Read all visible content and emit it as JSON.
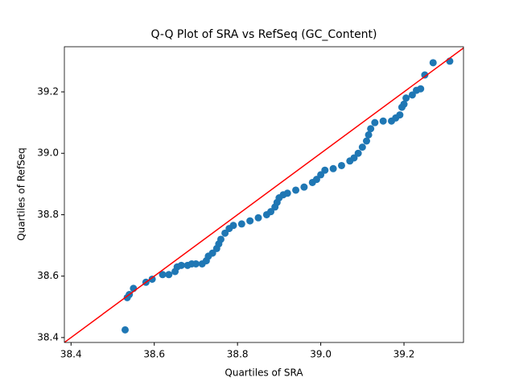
{
  "chart_data": {
    "type": "scatter",
    "title": "Q-Q Plot of SRA vs RefSeq (GC_Content)",
    "x_label": "Quartiles of SRA",
    "y_label": "Quartiles of RefSeq",
    "color": "#1f77b4",
    "line_color": "#ff0000",
    "x": [
      38.53,
      38.535,
      38.54,
      38.55,
      38.58,
      38.595,
      38.62,
      38.635,
      38.65,
      38.655,
      38.665,
      38.68,
      38.69,
      38.7,
      38.715,
      38.725,
      38.73,
      38.74,
      38.75,
      38.755,
      38.76,
      38.77,
      38.78,
      38.79,
      38.81,
      38.83,
      38.85,
      38.87,
      38.88,
      38.89,
      38.895,
      38.9,
      38.91,
      38.92,
      38.94,
      38.96,
      38.98,
      38.99,
      39.0,
      39.01,
      39.03,
      39.05,
      39.07,
      39.08,
      39.09,
      39.1,
      39.11,
      39.115,
      39.12,
      39.13,
      39.15,
      39.17,
      39.18,
      39.19,
      39.195,
      39.2,
      39.205,
      39.22,
      39.23,
      39.24,
      39.25,
      39.27,
      39.31
    ],
    "values": [
      38.425,
      38.53,
      38.54,
      38.56,
      38.58,
      38.59,
      38.605,
      38.605,
      38.615,
      38.63,
      38.635,
      38.635,
      38.64,
      38.64,
      38.64,
      38.65,
      38.665,
      38.675,
      38.69,
      38.705,
      38.72,
      38.74,
      38.755,
      38.765,
      38.77,
      38.78,
      38.79,
      38.8,
      38.81,
      38.825,
      38.84,
      38.855,
      38.865,
      38.87,
      38.88,
      38.89,
      38.905,
      38.915,
      38.93,
      38.945,
      38.95,
      38.96,
      38.975,
      38.985,
      39.0,
      39.02,
      39.04,
      39.06,
      39.08,
      39.1,
      39.105,
      39.105,
      39.115,
      39.125,
      39.15,
      39.16,
      39.18,
      39.19,
      39.205,
      39.21,
      39.255,
      39.295,
      39.3
    ],
    "xlim": [
      38.384,
      39.343
    ],
    "ylim": [
      38.384,
      39.347
    ],
    "xticks": [
      38.4,
      38.6,
      38.8,
      {
        "value": 39,
        "label": "39.0"
      },
      39.2
    ],
    "yticks": [
      38.4,
      38.6,
      38.8,
      {
        "value": 39,
        "label": "39.0"
      },
      39.2
    ]
  }
}
